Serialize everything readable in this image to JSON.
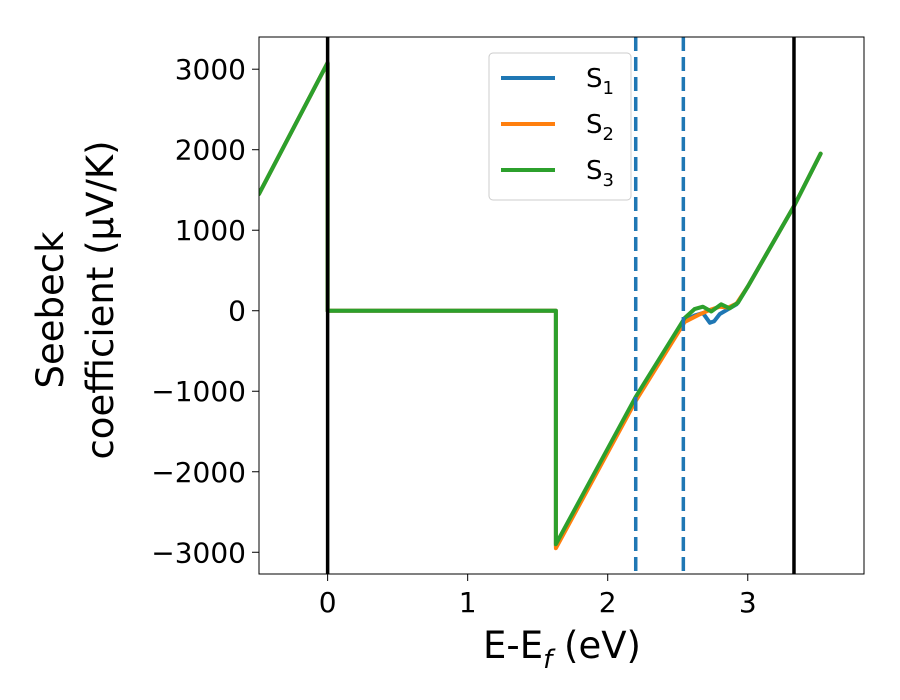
{
  "chart_data": {
    "type": "line",
    "xlabel": "E-E",
    "xlabel_sub": "f",
    "xlabel_unit": " (eV)",
    "ylabel_line1": "Seebeck",
    "ylabel_line2": "coefficient  (μV/K)",
    "xlim": [
      -0.49,
      3.83
    ],
    "ylim": [
      -3270,
      3400
    ],
    "x_ticks": [
      0,
      1,
      2,
      3
    ],
    "x_tick_labels": [
      "0",
      "1",
      "2",
      "3"
    ],
    "y_ticks": [
      -3000,
      -2000,
      -1000,
      0,
      1000,
      2000,
      3000
    ],
    "y_tick_labels": [
      "−3000",
      "−2000",
      "−1000",
      "0",
      "1000",
      "2000",
      "3000"
    ],
    "grid": false,
    "legend_position": "top-center",
    "series": [
      {
        "name": "S",
        "subscript": "1",
        "color": "#1f77b4",
        "x": [
          -0.49,
          0.0,
          0.0,
          1.63,
          1.63,
          2.2,
          2.55,
          2.62,
          2.68,
          2.73,
          2.76,
          2.8,
          2.86,
          2.92,
          3.0,
          3.33,
          3.52
        ],
        "y": [
          1450,
          3080,
          0,
          0,
          -2920,
          -1100,
          -120,
          -60,
          -30,
          -150,
          -130,
          -40,
          20,
          80,
          300,
          1300,
          1950
        ]
      },
      {
        "name": "S",
        "subscript": "2",
        "color": "#ff7f0e",
        "x": [
          -0.49,
          0.0,
          0.0,
          1.63,
          1.63,
          2.2,
          2.55,
          2.65,
          2.73,
          2.8,
          2.86,
          2.92,
          3.0,
          3.33,
          3.52
        ],
        "y": [
          1450,
          3080,
          0,
          0,
          -2950,
          -1120,
          -140,
          -50,
          10,
          50,
          40,
          90,
          300,
          1300,
          1950
        ]
      },
      {
        "name": "S",
        "subscript": "3",
        "color": "#2ca02c",
        "x": [
          -0.49,
          0.0,
          0.0,
          1.63,
          1.63,
          2.2,
          2.55,
          2.62,
          2.68,
          2.74,
          2.81,
          2.87,
          2.93,
          3.0,
          3.33,
          3.52
        ],
        "y": [
          1450,
          3080,
          0,
          0,
          -2900,
          -1070,
          -90,
          20,
          50,
          -10,
          80,
          30,
          100,
          300,
          1300,
          1950
        ]
      }
    ],
    "vertical_lines": [
      {
        "x": 0.0,
        "style": "solid",
        "color": "#000000"
      },
      {
        "x": 3.33,
        "style": "solid",
        "color": "#000000"
      },
      {
        "x": 2.2,
        "style": "dashed",
        "color": "#1f77b4"
      },
      {
        "x": 2.54,
        "style": "dashed",
        "color": "#1f77b4"
      }
    ]
  }
}
